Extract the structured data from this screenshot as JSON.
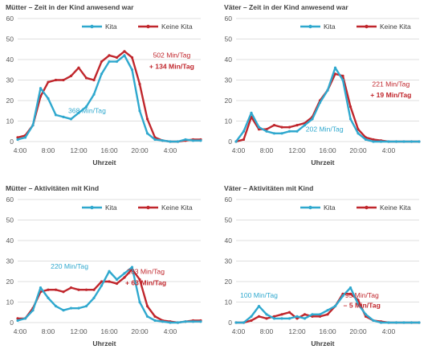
{
  "colors": {
    "kita": "#2FA8CE",
    "keine_kita": "#C0262C",
    "grid": "#d4d4d4",
    "axis_text": "#595959"
  },
  "chart_data": [
    {
      "type": "line",
      "title": "Mütter – Zeit in der Kind anwesend war",
      "xlabel": "Uhrzeit",
      "ylabel": "",
      "ylim": [
        0,
        60
      ],
      "yticks": [
        "0",
        "10",
        "20",
        "30",
        "40",
        "50",
        "60"
      ],
      "xticks": [
        "4:00",
        "8:00",
        "12:00",
        "16:00",
        "20:00",
        "4:00"
      ],
      "legend": "top",
      "grid": true,
      "series": [
        {
          "name": "Kita",
          "color": "#2FA8CE",
          "x": [
            4,
            5,
            6,
            7,
            8,
            9,
            10,
            11,
            12,
            13,
            14,
            15,
            16,
            17,
            18,
            19,
            20,
            21,
            22,
            23,
            24,
            25,
            26,
            27,
            28
          ],
          "values": [
            1,
            2,
            8,
            26,
            21,
            13,
            12,
            11,
            14,
            17,
            23,
            33,
            39,
            39,
            42,
            35,
            15,
            4,
            1,
            0.5,
            0,
            0,
            1,
            0.5,
            0.5
          ]
        },
        {
          "name": "Keine Kita",
          "color": "#C0262C",
          "x": [
            4,
            5,
            6,
            7,
            8,
            9,
            10,
            11,
            12,
            13,
            14,
            15,
            16,
            17,
            18,
            19,
            20,
            21,
            22,
            23,
            24,
            25,
            26,
            27,
            28
          ],
          "values": [
            2,
            3,
            8,
            22,
            29,
            30,
            30,
            32,
            36,
            31,
            30,
            39,
            42,
            41,
            44,
            41,
            28,
            11,
            2,
            0.5,
            0,
            0,
            0.5,
            1,
            1
          ]
        }
      ],
      "annotations": [
        {
          "text": "368 Min/Tag",
          "color": "#2FA8CE",
          "x": 13.1,
          "y": 14
        },
        {
          "text": "502 Min/Tag",
          "color": "#C0262C",
          "x": 24.2,
          "y": 41
        },
        {
          "text": "+ 134 Min/Tag",
          "color": "#C0262C",
          "x": 24.2,
          "y": 35.5
        }
      ]
    },
    {
      "type": "line",
      "title": "Väter – Zeit in der Kind anwesend war",
      "xlabel": "Uhrzeit",
      "ylabel": "",
      "ylim": [
        0,
        60
      ],
      "yticks": [
        "0",
        "10",
        "20",
        "30",
        "40",
        "50",
        "60"
      ],
      "xticks": [
        "4:00",
        "8:00",
        "12:00",
        "16:00",
        "20:00",
        "4:00"
      ],
      "legend": "top",
      "grid": true,
      "series": [
        {
          "name": "Kita",
          "color": "#2FA8CE",
          "x": [
            4,
            5,
            6,
            7,
            8,
            9,
            10,
            11,
            12,
            13,
            14,
            15,
            16,
            17,
            18,
            19,
            20,
            21,
            22,
            23,
            24,
            25,
            26,
            27,
            28
          ],
          "values": [
            0,
            5,
            14,
            7,
            5,
            4,
            4,
            5,
            5,
            8,
            11,
            19,
            25,
            36,
            30,
            11,
            4,
            1,
            0,
            0,
            0,
            0,
            0,
            0,
            0
          ]
        },
        {
          "name": "Keine Kita",
          "color": "#C0262C",
          "x": [
            4,
            5,
            6,
            7,
            8,
            9,
            10,
            11,
            12,
            13,
            14,
            15,
            16,
            17,
            18,
            19,
            20,
            21,
            22,
            23,
            24,
            25,
            26,
            27,
            28
          ],
          "values": [
            0,
            1,
            12,
            6,
            6,
            8,
            7,
            7,
            8,
            9,
            12,
            20,
            25,
            33,
            32,
            17,
            6,
            2,
            1,
            0.5,
            0,
            0,
            0,
            0,
            0
          ]
        }
      ],
      "annotations": [
        {
          "text": "202 Min/Tag",
          "color": "#2FA8CE",
          "x": 15.6,
          "y": 5
        },
        {
          "text": "221 Min/Tag",
          "color": "#C0262C",
          "x": 24.3,
          "y": 26.8
        },
        {
          "text": "+ 19 Min/Tag",
          "color": "#C0262C",
          "x": 24.3,
          "y": 21.5
        }
      ]
    },
    {
      "type": "line",
      "title": "Mütter – Aktivitäten mit Kind",
      "xlabel": "Uhrzeit",
      "ylabel": "",
      "ylim": [
        0,
        60
      ],
      "yticks": [
        "0",
        "10",
        "20",
        "30",
        "40",
        "50",
        "60"
      ],
      "xticks": [
        "4:00",
        "8:00",
        "12:00",
        "16:00",
        "20:00",
        "4:00"
      ],
      "legend": "top",
      "grid": true,
      "series": [
        {
          "name": "Kita",
          "color": "#2FA8CE",
          "x": [
            4,
            5,
            6,
            7,
            8,
            9,
            10,
            11,
            12,
            13,
            14,
            15,
            16,
            17,
            18,
            19,
            20,
            21,
            22,
            23,
            24,
            25,
            26,
            27,
            28
          ],
          "values": [
            1,
            2,
            6,
            17,
            12,
            8,
            6,
            7,
            7,
            8,
            12,
            18,
            25,
            21,
            24,
            27,
            10,
            3,
            1,
            0.5,
            0,
            0,
            0.5,
            0.5,
            0.5
          ]
        },
        {
          "name": "Keine Kita",
          "color": "#C0262C",
          "x": [
            4,
            5,
            6,
            7,
            8,
            9,
            10,
            11,
            12,
            13,
            14,
            15,
            16,
            17,
            18,
            19,
            20,
            21,
            22,
            23,
            24,
            25,
            26,
            27,
            28
          ],
          "values": [
            2,
            2,
            7,
            15,
            16,
            16,
            15,
            17,
            16,
            16,
            16,
            20,
            20,
            19,
            22,
            26,
            21,
            8,
            3,
            1,
            0.5,
            0,
            0.5,
            1,
            1
          ]
        }
      ],
      "annotations": [
        {
          "text": "220 Min/Tag",
          "color": "#2FA8CE",
          "x": 10.8,
          "y": 26.3
        },
        {
          "text": "283 Min/Tag",
          "color": "#C0262C",
          "x": 20.8,
          "y": 23.8
        },
        {
          "text": "+ 63 Min/Tag",
          "color": "#C0262C",
          "x": 20.8,
          "y": 18.3
        }
      ]
    },
    {
      "type": "line",
      "title": "Väter – Aktivitäten mit Kind",
      "xlabel": "Uhrzeit",
      "ylabel": "",
      "ylim": [
        0,
        60
      ],
      "yticks": [
        "0",
        "10",
        "20",
        "30",
        "40",
        "50",
        "60"
      ],
      "xticks": [
        "4:00",
        "8:00",
        "12:00",
        "16:00",
        "20:00",
        "4:00"
      ],
      "legend": "top",
      "grid": true,
      "series": [
        {
          "name": "Kita",
          "color": "#2FA8CE",
          "x": [
            4,
            5,
            6,
            7,
            8,
            9,
            10,
            11,
            12,
            13,
            14,
            15,
            16,
            17,
            18,
            19,
            20,
            21,
            22,
            23,
            24,
            25,
            26,
            27,
            28
          ],
          "values": [
            0,
            0,
            3,
            8,
            4,
            2,
            2,
            2,
            3,
            2,
            4,
            4,
            6,
            8,
            13,
            17,
            9,
            4,
            1,
            0,
            0,
            0,
            0,
            0,
            0
          ]
        },
        {
          "name": "Keine Kita",
          "color": "#C0262C",
          "x": [
            4,
            5,
            6,
            7,
            8,
            9,
            10,
            11,
            12,
            13,
            14,
            15,
            16,
            17,
            18,
            19,
            20,
            21,
            22,
            23,
            24,
            25,
            26,
            27,
            28
          ],
          "values": [
            0,
            0,
            1,
            3,
            2,
            3,
            4,
            5,
            2,
            4,
            3,
            3,
            4,
            8,
            14,
            14,
            11,
            3,
            1,
            0.5,
            0,
            0,
            0,
            0,
            0
          ]
        }
      ],
      "annotations": [
        {
          "text": "100 Min/Tag",
          "color": "#2FA8CE",
          "x": 7.0,
          "y": 12.2
        },
        {
          "text": "95 Min/Tag",
          "color": "#C0262C",
          "x": 20.5,
          "y": 12.2
        },
        {
          "text": "– 5 Min/Tag",
          "color": "#C0262C",
          "x": 20.5,
          "y": 7.3
        }
      ]
    }
  ]
}
